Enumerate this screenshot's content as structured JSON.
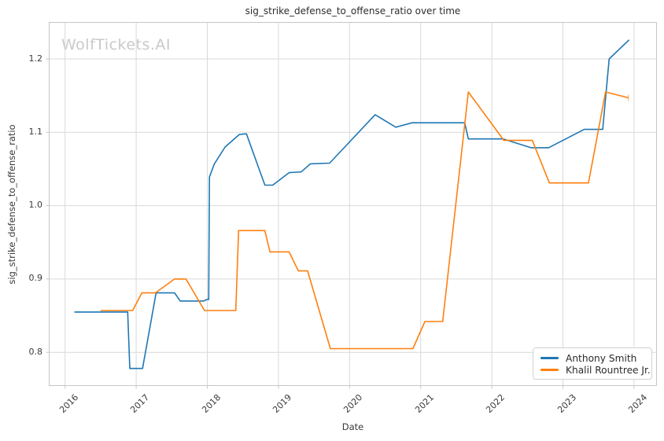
{
  "watermark": "WolfTickets.AI",
  "chart_data": {
    "type": "line",
    "title": "sig_strike_defense_to_offense_ratio over time",
    "xlabel": "Date",
    "ylabel": "sig_strike_defense_to_offense_ratio",
    "x_ticks": [
      2016,
      2017,
      2018,
      2019,
      2020,
      2021,
      2022,
      2023,
      2024
    ],
    "y_ticks": [
      "0.8",
      "0.9",
      "1.0",
      "1.1",
      "1.2"
    ],
    "xlim": [
      2015.77,
      2024.33
    ],
    "ylim": [
      0.755,
      1.251
    ],
    "grid": true,
    "legend_position": "lower right",
    "colors": {
      "grid": "#d9d9d9",
      "spine": "#c6c6c6",
      "tick_label": "#3a3a3a"
    },
    "series": [
      {
        "name": "Anthony Smith",
        "color": "#1f77b4",
        "points": [
          [
            2016.13,
            0.855
          ],
          [
            2016.88,
            0.855
          ],
          [
            2016.91,
            0.778
          ],
          [
            2017.09,
            0.778
          ],
          [
            2017.28,
            0.881
          ],
          [
            2017.54,
            0.881
          ],
          [
            2017.62,
            0.87
          ],
          [
            2017.95,
            0.87
          ],
          [
            2017.99,
            0.872
          ],
          [
            2018.02,
            0.872
          ],
          [
            2018.03,
            1.039
          ],
          [
            2018.1,
            1.057
          ],
          [
            2018.25,
            1.08
          ],
          [
            2018.45,
            1.097
          ],
          [
            2018.55,
            1.098
          ],
          [
            2018.81,
            1.028
          ],
          [
            2018.92,
            1.028
          ],
          [
            2019.15,
            1.045
          ],
          [
            2019.32,
            1.046
          ],
          [
            2019.45,
            1.057
          ],
          [
            2019.72,
            1.058
          ],
          [
            2020.36,
            1.124
          ],
          [
            2020.65,
            1.107
          ],
          [
            2020.88,
            1.113
          ],
          [
            2021.62,
            1.113
          ],
          [
            2021.67,
            1.091
          ],
          [
            2022.16,
            1.091
          ],
          [
            2022.55,
            1.079
          ],
          [
            2022.8,
            1.079
          ],
          [
            2023.3,
            1.104
          ],
          [
            2023.56,
            1.104
          ],
          [
            2023.65,
            1.2
          ],
          [
            2023.93,
            1.226
          ]
        ],
        "end_cap": false
      },
      {
        "name": "Khalil Rountree Jr.",
        "color": "#ff7f0e",
        "points": [
          [
            2016.5,
            0.857
          ],
          [
            2016.95,
            0.857
          ],
          [
            2017.08,
            0.881
          ],
          [
            2017.27,
            0.881
          ],
          [
            2017.54,
            0.9
          ],
          [
            2017.7,
            0.9
          ],
          [
            2017.96,
            0.857
          ],
          [
            2018.4,
            0.857
          ],
          [
            2018.44,
            0.966
          ],
          [
            2018.81,
            0.966
          ],
          [
            2018.88,
            0.937
          ],
          [
            2019.15,
            0.937
          ],
          [
            2019.28,
            0.911
          ],
          [
            2019.41,
            0.911
          ],
          [
            2019.73,
            0.805
          ],
          [
            2020.89,
            0.805
          ],
          [
            2021.06,
            0.842
          ],
          [
            2021.31,
            0.842
          ],
          [
            2021.67,
            1.155
          ],
          [
            2022.17,
            1.089
          ],
          [
            2022.57,
            1.089
          ],
          [
            2022.81,
            1.031
          ],
          [
            2023.36,
            1.031
          ],
          [
            2023.6,
            1.155
          ],
          [
            2023.92,
            1.147
          ]
        ],
        "end_cap": true
      }
    ]
  }
}
